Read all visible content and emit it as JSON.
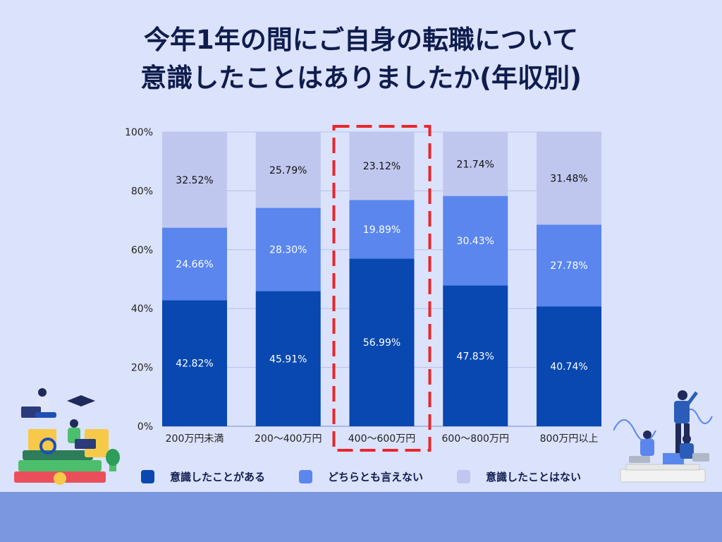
{
  "title_lines": [
    "今年1年の間にご自身の転職について",
    "意識したことはありましたか(年収別)"
  ],
  "colors": {
    "background": "#dbe2fb",
    "footer": "#7b97e0",
    "highlight": "#e8262b"
  },
  "legend": [
    {
      "label": "意識したことがある",
      "color": "#0848b0"
    },
    {
      "label": "どちらとも言えない",
      "color": "#5a86ee"
    },
    {
      "label": "意識したことはない",
      "color": "#c0c7ee"
    }
  ],
  "chart_data": {
    "type": "bar",
    "stacked": true,
    "categories": [
      "200万円未満",
      "200〜400万円",
      "400〜600万円",
      "600〜800万円",
      "800万円以上"
    ],
    "series": [
      {
        "name": "意識したことがある",
        "color": "#0848b0",
        "values": [
          42.82,
          45.91,
          56.99,
          47.83,
          40.74
        ]
      },
      {
        "name": "どちらとも言えない",
        "color": "#5a86ee",
        "values": [
          24.66,
          28.3,
          19.89,
          30.43,
          27.78
        ]
      },
      {
        "name": "意識したことはない",
        "color": "#c0c7ee",
        "values": [
          32.52,
          25.79,
          23.12,
          21.74,
          31.48
        ]
      }
    ],
    "value_labels": [
      [
        "42.82%",
        "45.91%",
        "56.99%",
        "47.83%",
        "40.74%"
      ],
      [
        "24.66%",
        "28.30%",
        "19.89%",
        "30.43%",
        "27.78%"
      ],
      [
        "32.52%",
        "25.79%",
        "23.12%",
        "21.74%",
        "31.48%"
      ]
    ],
    "y_ticks": [
      0,
      20,
      40,
      60,
      80,
      100
    ],
    "y_tick_labels": [
      "0%",
      "20%",
      "40%",
      "60%",
      "80%",
      "100%"
    ],
    "ylim": [
      0,
      100
    ],
    "grid": true,
    "highlighted_category": "400〜600万円",
    "legend_position": "bottom"
  }
}
